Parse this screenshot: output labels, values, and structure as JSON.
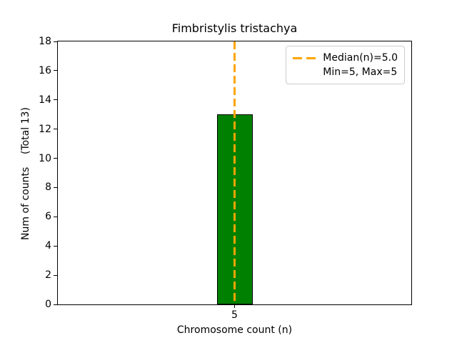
{
  "chart_data": {
    "type": "bar",
    "title": "Fimbristylis tristachya",
    "xlabel": "Chromosome count (n)",
    "ylabel": "Num of counts    (Total 13)",
    "categories": [
      "5"
    ],
    "values": [
      13
    ],
    "ylim": [
      0,
      18
    ],
    "yticks": [
      0,
      2,
      4,
      6,
      8,
      10,
      12,
      14,
      16,
      18
    ],
    "grid": false,
    "legend_position": "upper right",
    "bar": {
      "fill_color": "#008000",
      "edge_color": "#000000"
    },
    "median_line": {
      "x": 5.0,
      "color": "#FFA500",
      "style": "dashed"
    },
    "legend": {
      "entries": [
        {
          "label": "Median(n)=5.0",
          "line_color": "#FFA500",
          "line_style": "dashed"
        },
        {
          "label": "Min=5, Max=5",
          "line_color": null,
          "line_style": null
        }
      ]
    }
  }
}
